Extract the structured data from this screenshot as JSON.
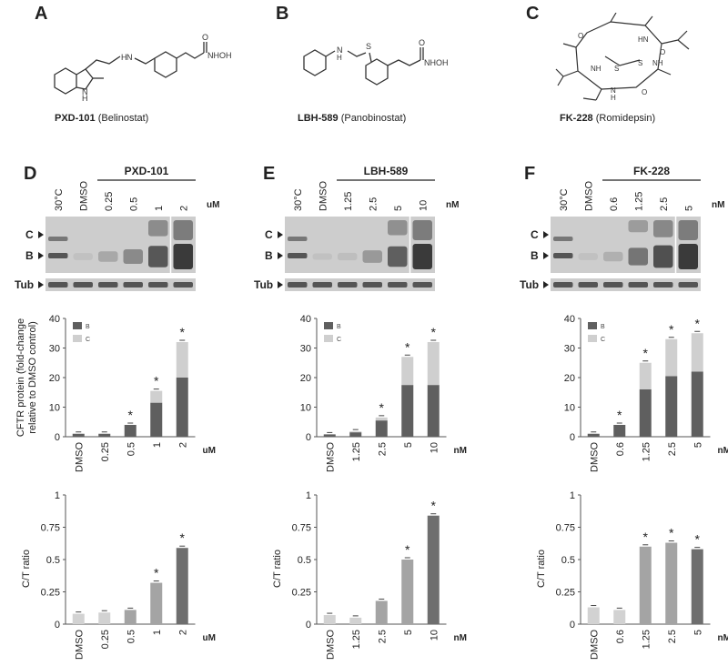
{
  "panels": {
    "A": {
      "letter": "A",
      "drug_bold": "PXD-101",
      "drug_name": "(Belinostat)",
      "label": "NHOH"
    },
    "B": {
      "letter": "B",
      "drug_bold": "LBH-589",
      "drug_name": "(Panobinostat)",
      "label": "NHOH"
    },
    "C": {
      "letter": "C",
      "drug_bold": "FK-228",
      "drug_name": "(Romidepsin)"
    },
    "D": {
      "letter": "D",
      "drug": "PXD-101",
      "unit": "uM",
      "lanes": [
        "30°C",
        "DMSO",
        "0.25",
        "0.5",
        "1",
        "2"
      ]
    },
    "E": {
      "letter": "E",
      "drug": "LBH-589",
      "unit": "nM",
      "lanes": [
        "30°C",
        "DMSO",
        "1.25",
        "2.5",
        "5",
        "10"
      ]
    },
    "F": {
      "letter": "F",
      "drug": "FK-228",
      "unit": "nM",
      "lanes": [
        "30°C",
        "DMSO",
        "0.6",
        "1.25",
        "2.5",
        "5"
      ]
    }
  },
  "blot_labels": {
    "C": "C",
    "B": "B",
    "tub": "Tub"
  },
  "colors": {
    "band_B": "#5f5f5f",
    "band_C": "#cfcfcf",
    "ratio_light": "#d2d2d2",
    "ratio_mid": "#a4a4a4",
    "ratio_dark": "#6e6e6e",
    "blot_bg": "#cdcdcd",
    "band_dark": "#3a3a3a"
  },
  "chart_data": [
    {
      "type": "bar",
      "panel": "D",
      "stacked": true,
      "categories": [
        "DMSO",
        "0.25",
        "0.5",
        "1",
        "2"
      ],
      "series": [
        {
          "name": "B",
          "values": [
            1,
            1,
            4,
            11.5,
            20
          ]
        },
        {
          "name": "C",
          "values": [
            0,
            0,
            0,
            4,
            12
          ]
        }
      ],
      "ylabel": "CFTR protein (fold-change relative to DMSO control)",
      "ylim": [
        0,
        40
      ],
      "yticks": [
        "0",
        "10",
        "20",
        "30",
        "40"
      ],
      "unit": "uM",
      "significant": [
        false,
        false,
        true,
        true,
        true
      ],
      "legend": "top-left"
    },
    {
      "type": "bar",
      "panel": "E",
      "stacked": true,
      "categories": [
        "DMSO",
        "1.25",
        "2.5",
        "5",
        "10"
      ],
      "series": [
        {
          "name": "B",
          "values": [
            0.8,
            1.5,
            5.5,
            17.5,
            17.5
          ]
        },
        {
          "name": "C",
          "values": [
            0,
            0.3,
            1,
            9.5,
            14.5
          ]
        }
      ],
      "ylim": [
        0,
        40
      ],
      "yticks": [
        "0",
        "10",
        "20",
        "30",
        "40"
      ],
      "unit": "nM",
      "significant": [
        false,
        false,
        true,
        true,
        true
      ],
      "legend": "top-left"
    },
    {
      "type": "bar",
      "panel": "F",
      "stacked": true,
      "categories": [
        "DMSO",
        "0.6",
        "1.25",
        "2.5",
        "5"
      ],
      "series": [
        {
          "name": "B",
          "values": [
            1,
            4,
            16,
            20.5,
            22
          ]
        },
        {
          "name": "C",
          "values": [
            0,
            0,
            9,
            12.5,
            13
          ]
        }
      ],
      "ylim": [
        0,
        40
      ],
      "yticks": [
        "0",
        "10",
        "20",
        "30",
        "40"
      ],
      "unit": "nM",
      "significant": [
        false,
        true,
        true,
        true,
        true
      ],
      "legend": "top-left"
    },
    {
      "type": "bar",
      "panel": "D",
      "categories": [
        "DMSO",
        "0.25",
        "0.5",
        "1",
        "2"
      ],
      "values": [
        0.08,
        0.09,
        0.11,
        0.32,
        0.59
      ],
      "ylabel": "C/T ratio",
      "ylim": [
        0,
        1
      ],
      "yticks": [
        "0",
        "0.25",
        "0.5",
        "0.75",
        "1"
      ],
      "unit": "uM",
      "significant": [
        false,
        false,
        false,
        true,
        true
      ]
    },
    {
      "type": "bar",
      "panel": "E",
      "categories": [
        "DMSO",
        "1.25",
        "2.5",
        "5",
        "10"
      ],
      "values": [
        0.07,
        0.05,
        0.18,
        0.5,
        0.84
      ],
      "ylabel": "C/T ratio",
      "ylim": [
        0,
        1
      ],
      "yticks": [
        "0",
        "0.25",
        "0.5",
        "0.75",
        "1"
      ],
      "unit": "nM",
      "significant": [
        false,
        false,
        false,
        true,
        true
      ]
    },
    {
      "type": "bar",
      "panel": "F",
      "categories": [
        "DMSO",
        "0.6",
        "1.25",
        "2.5",
        "5"
      ],
      "values": [
        0.13,
        0.11,
        0.6,
        0.63,
        0.58
      ],
      "ylabel": "C/T ratio",
      "ylim": [
        0,
        1
      ],
      "yticks": [
        "0",
        "0.25",
        "0.5",
        "0.75",
        "1"
      ],
      "unit": "nM",
      "significant": [
        false,
        false,
        true,
        true,
        true
      ]
    }
  ]
}
